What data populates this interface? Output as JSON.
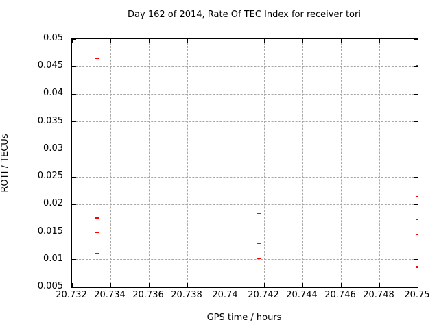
{
  "chart_data": {
    "type": "scatter",
    "title": "Day 162 of 2014, Rate Of TEC Index for receiver tori",
    "xlabel": "GPS time / hours",
    "ylabel": "ROTI / TECUs",
    "xlim": [
      20.732,
      20.75
    ],
    "ylim": [
      0.005,
      0.05
    ],
    "xticks": [
      20.732,
      20.734,
      20.736,
      20.738,
      20.74,
      20.742,
      20.744,
      20.746,
      20.748,
      20.75
    ],
    "xtick_labels": [
      "20.732",
      "20.734",
      "20.736",
      "20.738",
      "20.74",
      "20.742",
      "20.744",
      "20.746",
      "20.748",
      "20.75"
    ],
    "yticks": [
      0.005,
      0.01,
      0.015,
      0.02,
      0.025,
      0.03,
      0.035,
      0.04,
      0.045,
      0.05
    ],
    "ytick_labels": [
      "0.005",
      "0.01",
      "0.015",
      "0.02",
      "0.025",
      "0.03",
      "0.035",
      "0.04",
      "0.045",
      "0.05"
    ],
    "grid": true,
    "legend": false,
    "marker": {
      "shape": "plus",
      "color": "#ff0000",
      "size": 7
    },
    "series": [
      {
        "name": "ROTI",
        "points": [
          [
            20.7333,
            0.0465
          ],
          [
            20.7333,
            0.0225
          ],
          [
            20.7333,
            0.0206
          ],
          [
            20.7333,
            0.0177
          ],
          [
            20.7333,
            0.0175
          ],
          [
            20.7333,
            0.015
          ],
          [
            20.7333,
            0.0135
          ],
          [
            20.7333,
            0.0112
          ],
          [
            20.7333,
            0.01
          ],
          [
            20.7417,
            0.0482
          ],
          [
            20.7417,
            0.0221
          ],
          [
            20.7417,
            0.021
          ],
          [
            20.7417,
            0.0184
          ],
          [
            20.7417,
            0.0158
          ],
          [
            20.7417,
            0.0129
          ],
          [
            20.7417,
            0.0102
          ],
          [
            20.7417,
            0.0083
          ],
          [
            20.75,
            0.0453
          ],
          [
            20.75,
            0.0215
          ],
          [
            20.75,
            0.0205
          ],
          [
            20.75,
            0.0173
          ],
          [
            20.75,
            0.0162
          ],
          [
            20.75,
            0.0146
          ],
          [
            20.75,
            0.0134
          ],
          [
            20.75,
            0.0089
          ],
          [
            20.75,
            0.0086
          ]
        ]
      }
    ]
  }
}
